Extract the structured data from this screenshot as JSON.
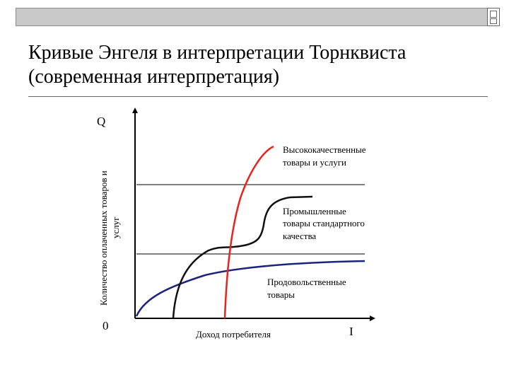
{
  "title_line1": "Кривые Энгеля в интерпретации Торнквиста",
  "title_line2": "(современная интерпретация)",
  "diagram": {
    "y_axis_symbol": "Q",
    "y_axis_label_line1": "Количество оплаченных товаров и",
    "y_axis_label_line2": "услуг",
    "origin_label": "0",
    "x_axis_label": "Доход потребителя",
    "x_axis_symbol": "I",
    "curves": [
      {
        "name_line1": "Высококачественные",
        "name_line2": "товары и услуги",
        "color": "#e8231f"
      },
      {
        "name_line1": "Промышленные",
        "name_line2": "товары стандартного",
        "name_line3": "качества",
        "color": "#111111"
      },
      {
        "name_line1": "Продовольственные",
        "name_line2": "товары",
        "color": "#1a237e"
      }
    ]
  }
}
